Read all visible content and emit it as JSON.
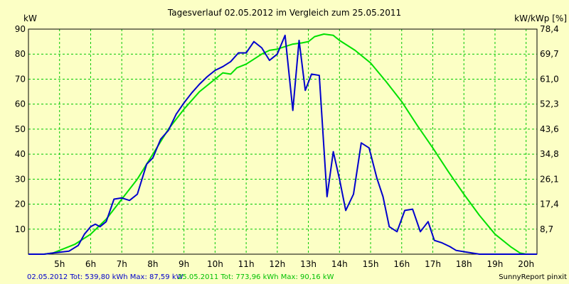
{
  "chart_data": {
    "type": "line",
    "title": "Tagesverlauf 02.05.2012 im Vergleich zum 25.05.2011",
    "ylabel_left": "kW",
    "ylabel_right": "kW/kWp [%]",
    "xlim": [
      4.0,
      20.35
    ],
    "ylim": [
      0,
      90
    ],
    "grid": true,
    "x_ticks": [
      5,
      6,
      7,
      8,
      9,
      10,
      11,
      12,
      13,
      14,
      15,
      16,
      17,
      18,
      19,
      20
    ],
    "x_tick_labels": [
      "5h",
      "6h",
      "7h",
      "8h",
      "9h",
      "10h",
      "11h",
      "12h",
      "13h",
      "14h",
      "15h",
      "16h",
      "17h",
      "18h",
      "19h",
      "20h"
    ],
    "y_left_ticks": [
      10,
      20,
      30,
      40,
      50,
      60,
      70,
      80,
      90
    ],
    "y_left_tick_labels": [
      "10",
      "20",
      "30",
      "40",
      "50",
      "60",
      "70",
      "80",
      "90"
    ],
    "y_right_ticks": [
      10,
      20,
      30,
      40,
      50,
      60,
      70,
      80,
      90
    ],
    "y_right_tick_labels": [
      "8,7",
      "17,4",
      "26,1",
      "34,8",
      "43,6",
      "52,3",
      "61,0",
      "69,7",
      "78,4"
    ],
    "colors": {
      "series_0": "#0000cc",
      "series_1": "#00e000",
      "grid": "#00c800",
      "background": "#fcffc5"
    },
    "series": [
      {
        "name": "02.05.2012",
        "color": "#0000cc",
        "x": [
          4.0,
          4.5,
          4.8,
          5.0,
          5.3,
          5.6,
          5.8,
          6.0,
          6.15,
          6.3,
          6.5,
          6.75,
          7.0,
          7.25,
          7.5,
          7.8,
          8.0,
          8.25,
          8.5,
          8.75,
          9.0,
          9.25,
          9.5,
          9.75,
          10.0,
          10.25,
          10.5,
          10.75,
          11.0,
          11.25,
          11.5,
          11.75,
          12.0,
          12.25,
          12.5,
          12.7,
          12.9,
          13.1,
          13.35,
          13.6,
          13.8,
          14.0,
          14.2,
          14.45,
          14.7,
          14.95,
          15.2,
          15.4,
          15.6,
          15.85,
          16.1,
          16.35,
          16.6,
          16.85,
          17.05,
          17.3,
          17.55,
          17.75,
          18.0,
          18.25,
          18.5,
          18.8,
          19.0,
          19.3,
          20.35
        ],
        "values": [
          0,
          0,
          0.5,
          0.8,
          1.2,
          3.5,
          8,
          11,
          12,
          11,
          13,
          22,
          22.5,
          21.5,
          24,
          36,
          38.5,
          46,
          49.5,
          56,
          60.5,
          64.5,
          68,
          71,
          73.5,
          75,
          77,
          80.5,
          80.5,
          85,
          82.5,
          77.5,
          80,
          87.5,
          57.5,
          85.5,
          65.5,
          72,
          71.5,
          23,
          41,
          30,
          17.5,
          24,
          44.5,
          42.5,
          30.5,
          23,
          11,
          9,
          17.5,
          18,
          9,
          13,
          5.5,
          4.5,
          3,
          1.5,
          1,
          0.5,
          0,
          0,
          0,
          0,
          0
        ]
      },
      {
        "name": "25.05.2011",
        "color": "#00e000",
        "x": [
          4.0,
          4.5,
          4.8,
          5.0,
          5.5,
          6.0,
          6.5,
          7.0,
          7.5,
          8.0,
          8.5,
          9.0,
          9.5,
          10.0,
          10.25,
          10.5,
          10.7,
          11.0,
          11.25,
          11.5,
          11.75,
          12.0,
          12.5,
          12.8,
          13.0,
          13.2,
          13.5,
          13.8,
          14.0,
          14.5,
          15.0,
          15.5,
          16.0,
          16.5,
          17.0,
          17.5,
          18.0,
          18.5,
          19.0,
          19.5,
          19.8,
          20.0,
          20.35
        ],
        "values": [
          0,
          0,
          0.5,
          1.5,
          4,
          8,
          14,
          22,
          30,
          40,
          50,
          58,
          65,
          70,
          72.5,
          72,
          74.5,
          76,
          78,
          80,
          81.5,
          82,
          84,
          84.5,
          85,
          87,
          88,
          87.5,
          85.5,
          81.5,
          76.5,
          69,
          61,
          51.5,
          42.5,
          33,
          24,
          15.5,
          8,
          3,
          0.5,
          0,
          0
        ]
      }
    ]
  },
  "footer": {
    "series_0_summary": "02.05.2012 Tot: 539,80 kWh Max: 87,59 kW",
    "series_1_summary": "25.05.2011 Tot: 773,96 kWh Max: 90,16 kW",
    "brand": "SunnyReport pinxit"
  }
}
